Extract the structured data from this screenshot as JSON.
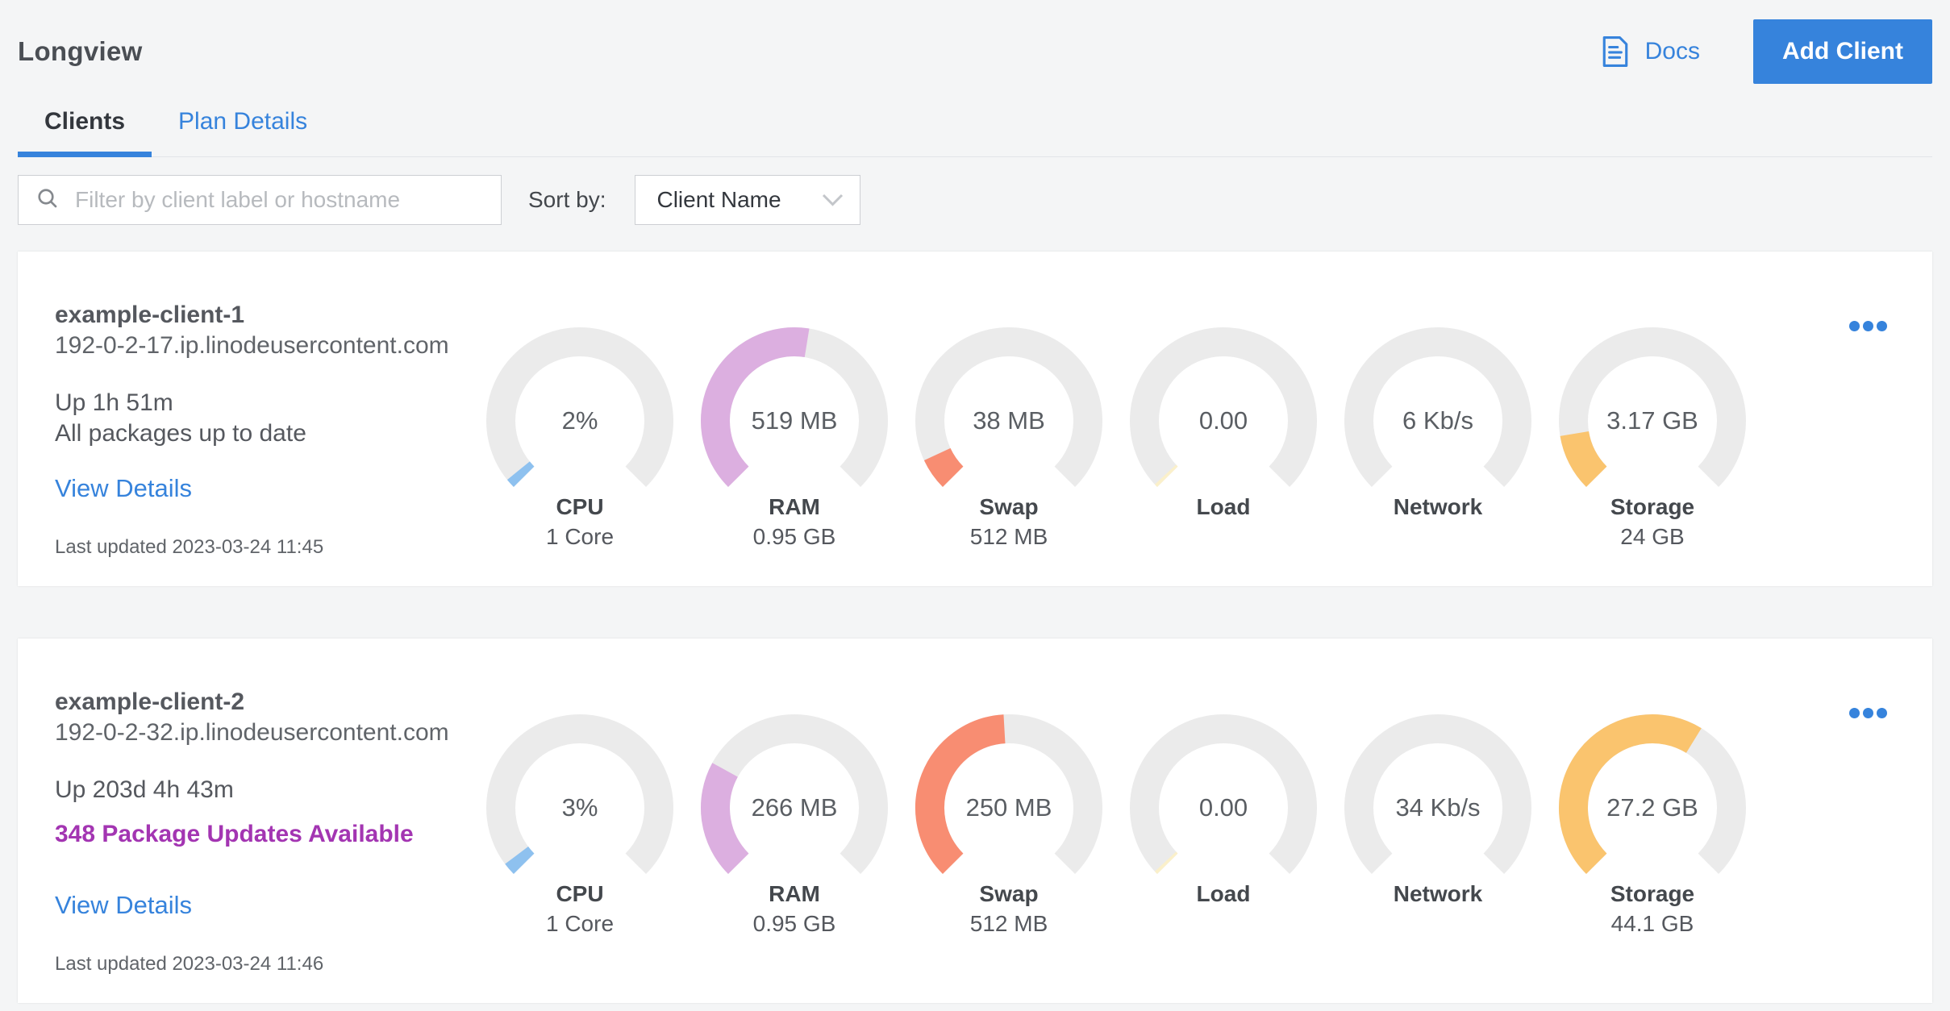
{
  "page": {
    "title": "Longview"
  },
  "header": {
    "docs_label": "Docs",
    "add_client_label": "Add Client"
  },
  "tabs": {
    "clients": "Clients",
    "plan_details": "Plan Details"
  },
  "toolbar": {
    "filter": {
      "placeholder": "Filter by client label or hostname",
      "value": ""
    },
    "sort": {
      "label": "Sort by:",
      "value": "Client Name"
    }
  },
  "colors": {
    "accent_blue": "#3683dc",
    "package_update_purple": "#a335b2",
    "gauge_track": "#ebebeb",
    "cpu_arc": "#8ec1ef",
    "ram_arc": "#dcafe0",
    "swap_arc": "#f88d72",
    "load_arc": "#fbf0ca",
    "storage_arc": "#fac46e"
  },
  "clients": [
    {
      "name": "example-client-1",
      "hostname": "192-0-2-17.ip.linodeusercontent.com",
      "uptime": "Up 1h 51m",
      "packages_status": "All packages up to date",
      "packages_updates_available": false,
      "view_details_label": "View Details",
      "last_updated": "Last updated 2023-03-24 11:45",
      "gauges": [
        {
          "metric": "cpu",
          "value": "2%",
          "label": "CPU",
          "sublabel": "1 Core",
          "fraction": 0.022,
          "color": "#8ec1ef"
        },
        {
          "metric": "ram",
          "value": "519 MB",
          "label": "RAM",
          "sublabel": "0.95 GB",
          "fraction": 0.534,
          "color": "#dcafe0"
        },
        {
          "metric": "swap",
          "value": "38 MB",
          "label": "Swap",
          "sublabel": "512 MB",
          "fraction": 0.074,
          "color": "#f88d72"
        },
        {
          "metric": "load",
          "value": "0.00",
          "label": "Load",
          "sublabel": "",
          "fraction": 0.008,
          "color": "#fbf0ca"
        },
        {
          "metric": "network",
          "value": "6 Kb/s",
          "label": "Network",
          "sublabel": "",
          "fraction": 0,
          "color": "#fbf0ca"
        },
        {
          "metric": "storage",
          "value": "3.17 GB",
          "label": "Storage",
          "sublabel": "24 GB",
          "fraction": 0.132,
          "color": "#fac46e"
        }
      ]
    },
    {
      "name": "example-client-2",
      "hostname": "192-0-2-32.ip.linodeusercontent.com",
      "uptime": "Up 203d 4h 43m",
      "packages_status": "348 Package Updates Available",
      "packages_updates_available": true,
      "view_details_label": "View Details",
      "last_updated": "Last updated 2023-03-24 11:46",
      "gauges": [
        {
          "metric": "cpu",
          "value": "3%",
          "label": "CPU",
          "sublabel": "1 Core",
          "fraction": 0.03,
          "color": "#8ec1ef"
        },
        {
          "metric": "ram",
          "value": "266 MB",
          "label": "RAM",
          "sublabel": "0.95 GB",
          "fraction": 0.273,
          "color": "#dcafe0"
        },
        {
          "metric": "swap",
          "value": "250 MB",
          "label": "Swap",
          "sublabel": "512 MB",
          "fraction": 0.488,
          "color": "#f88d72"
        },
        {
          "metric": "load",
          "value": "0.00",
          "label": "Load",
          "sublabel": "",
          "fraction": 0.008,
          "color": "#fbf0ca"
        },
        {
          "metric": "network",
          "value": "34 Kb/s",
          "label": "Network",
          "sublabel": "",
          "fraction": 0,
          "color": "#fbf0ca"
        },
        {
          "metric": "storage",
          "value": "27.2 GB",
          "label": "Storage",
          "sublabel": "44.1 GB",
          "fraction": 0.617,
          "color": "#fac46e"
        }
      ]
    }
  ]
}
